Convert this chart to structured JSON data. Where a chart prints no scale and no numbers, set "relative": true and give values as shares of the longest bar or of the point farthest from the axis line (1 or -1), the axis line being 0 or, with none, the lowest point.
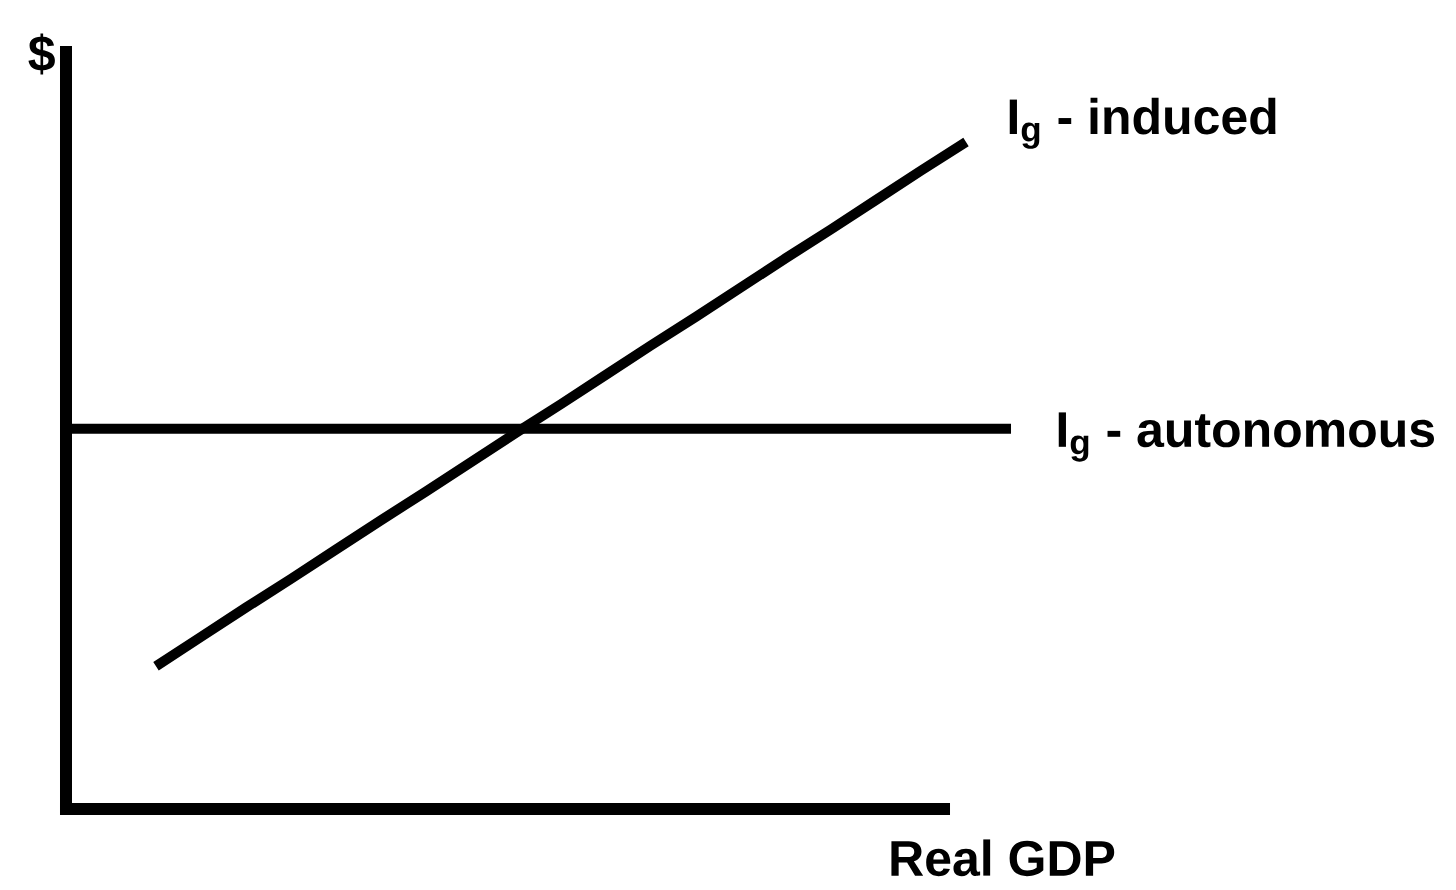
{
  "chart_data": {
    "type": "line",
    "xlabel": "Real GDP",
    "ylabel": "$",
    "relative": true,
    "categories": [
      null,
      null,
      null,
      null,
      null,
      null,
      null,
      null,
      null,
      null,
      null,
      null,
      null,
      null,
      null,
      null,
      null,
      null,
      null,
      null,
      null,
      null
    ],
    "series": [
      {
        "name": "I$_{g}$ - induced",
        "color": "#000000",
        "values": [
          null,
          null,
          0.214,
          0.258,
          0.302,
          0.345,
          0.389,
          0.433,
          0.476,
          0.52,
          0.564,
          0.607,
          0.651,
          0.695,
          0.738,
          0.782,
          0.826,
          0.869,
          0.913,
          0.957,
          1,
          null
        ]
      },
      {
        "name": "I$_{g}$ - autonomous",
        "color": "#000000",
        "values": [
          0.57,
          0.57,
          0.57,
          0.57,
          0.57,
          0.57,
          0.57,
          0.57,
          0.57,
          0.57,
          0.57,
          0.57,
          0.57,
          0.57,
          0.57,
          0.57,
          0.57,
          0.57,
          0.57,
          0.57,
          0.57,
          0.57
        ]
      }
    ],
    "marker": "none",
    "line_style": "solid"
  }
}
